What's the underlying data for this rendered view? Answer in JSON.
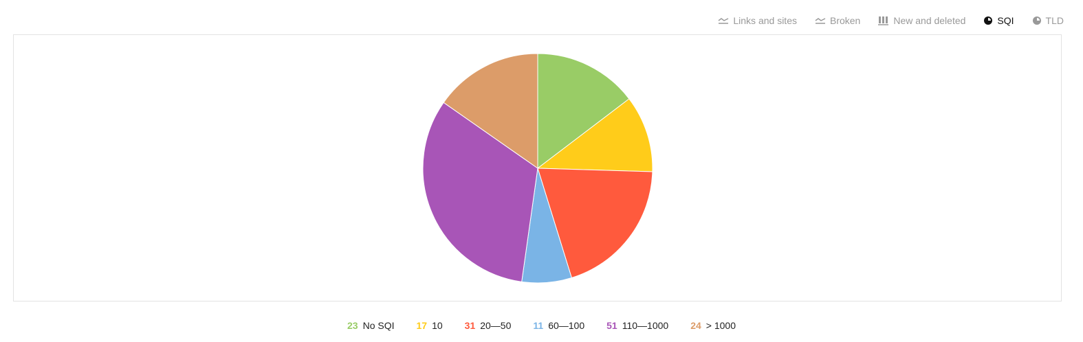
{
  "tabs": [
    {
      "label": "Links and sites",
      "icon": "line-chart-icon",
      "active": false
    },
    {
      "label": "Broken",
      "icon": "line-chart-icon",
      "active": false
    },
    {
      "label": "New and deleted",
      "icon": "bar-chart-icon",
      "active": false
    },
    {
      "label": "SQI",
      "icon": "pie-chart-icon",
      "active": true
    },
    {
      "label": "TLD",
      "icon": "pie-chart-icon",
      "active": false
    }
  ],
  "chart_data": {
    "type": "pie",
    "title": "",
    "legend_position": "bottom",
    "slices": [
      {
        "label": "No SQI",
        "value": 23,
        "color": "#99cc66"
      },
      {
        "label": "10",
        "value": 17,
        "color": "#ffcc1a"
      },
      {
        "label": "20—50",
        "value": 31,
        "color": "#ff5a3d"
      },
      {
        "label": "60—100",
        "value": 11,
        "color": "#7ab4e6"
      },
      {
        "label": "110—1000",
        "value": 51,
        "color": "#a855b7"
      },
      {
        "label": "> 1000",
        "value": 24,
        "color": "#dc9c69"
      }
    ]
  }
}
